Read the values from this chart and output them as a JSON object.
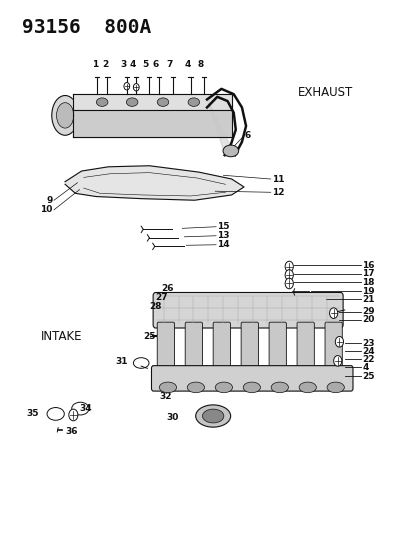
{
  "title": "93156  800A",
  "bg_color": "#ffffff",
  "title_fontsize": 14,
  "title_weight": "bold",
  "exhaust_label": "EXHAUST",
  "intake_label": "INTAKE",
  "label_fontsize": 9
}
